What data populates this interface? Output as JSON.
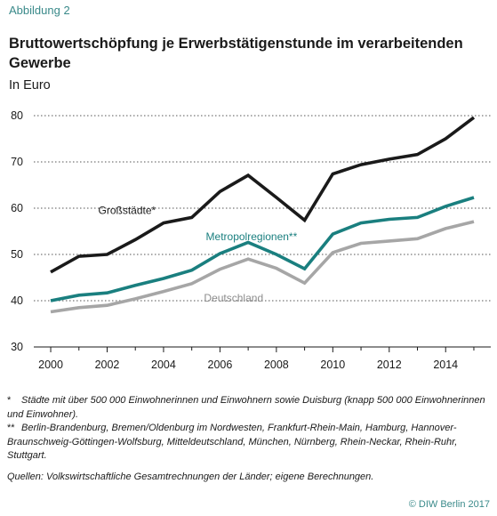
{
  "header": {
    "figure_label": "Abbildung 2",
    "title": "Bruttowertschöpfung je Erwerbstätigenstunde im verarbeitenden Gewerbe",
    "subtitle": "In Euro"
  },
  "footer": {
    "note1_marker": "*",
    "note1": "Städte mit über 500 000 Einwohnerinnen und Einwohnern sowie Duisburg (knapp 500 000 Einwohnerinnen und Einwohner).",
    "note2_marker": "**",
    "note2": "Berlin-Brandenburg, Bremen/Oldenburg im Nordwesten, Frankfurt-Rhein-Main, Hamburg, Hannover-Braunschweig-Göttingen-Wolfsburg, Mitteldeutschland, München, Nürnberg, Rhein-Neckar, Rhein-Ruhr, Stuttgart.",
    "source": "Quellen: Volkswirtschaftliche Gesamtrechnungen der Länder; eigene Berechnungen.",
    "copyright": "© DIW Berlin 2017"
  },
  "chart_data": {
    "type": "line",
    "x": [
      2000,
      2001,
      2002,
      2003,
      2004,
      2005,
      2006,
      2007,
      2008,
      2009,
      2010,
      2011,
      2012,
      2013,
      2014,
      2015
    ],
    "xticks": [
      2000,
      2002,
      2004,
      2006,
      2008,
      2010,
      2012,
      2014
    ],
    "xlim": [
      1999.4,
      2015.6
    ],
    "ylim": [
      30,
      80
    ],
    "yticks": [
      30,
      40,
      50,
      60,
      70,
      80
    ],
    "grid": "horizontal-dotted",
    "series": [
      {
        "name": "Großstädte*",
        "color": "#1a1a1a",
        "values": [
          46.2,
          49.6,
          50.0,
          53.2,
          56.8,
          58.0,
          63.6,
          67.1,
          62.3,
          57.4,
          67.4,
          69.4,
          70.6,
          71.6,
          75.0,
          79.6
        ]
      },
      {
        "name": "Metropolregionen**",
        "color": "#1a7f7f",
        "values": [
          40.0,
          41.2,
          41.7,
          43.3,
          44.8,
          46.6,
          50.2,
          52.6,
          50.0,
          46.9,
          54.4,
          56.8,
          57.6,
          58.0,
          60.4,
          62.3
        ]
      },
      {
        "name": "Deutschland",
        "color": "#a6a6a6",
        "values": [
          37.6,
          38.5,
          39.0,
          40.4,
          42.0,
          43.7,
          46.8,
          49.0,
          47.0,
          43.8,
          50.4,
          52.4,
          52.9,
          53.4,
          55.6,
          57.1
        ]
      }
    ]
  }
}
